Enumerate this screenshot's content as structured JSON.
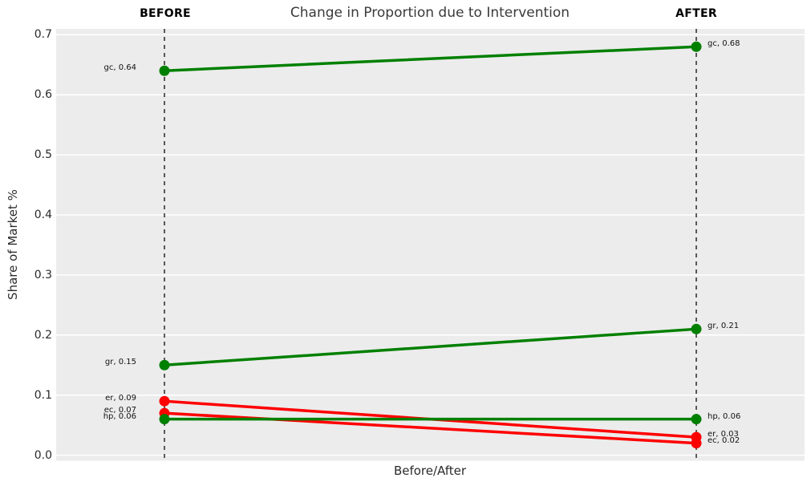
{
  "colors": {
    "figure_bg": "#ffffff",
    "plot_bg": "#ececec",
    "gridline": "#ffffff",
    "green": "#008000",
    "red": "#ff0000",
    "dashed_line": "#1a1a1a",
    "title_text": "#3a3a3a",
    "tick_text": "#2b2b2b",
    "annotation_text": "#111111"
  },
  "chart_data": {
    "type": "line",
    "variant": "slopegraph",
    "title": "Change in Proportion due to Intervention",
    "xlabel": "Before/After",
    "ylabel": "Share of Market %",
    "columns": [
      "BEFORE",
      "AFTER"
    ],
    "ylim": [
      0.0,
      0.7
    ],
    "legend": "none",
    "grid": "major-horizontal",
    "yticks": [
      {
        "value": 0.7,
        "label": "0.7"
      },
      {
        "value": 0.6,
        "label": "0.6"
      },
      {
        "value": 0.5,
        "label": "0.5"
      },
      {
        "value": 0.4,
        "label": "0.4"
      },
      {
        "value": 0.3,
        "label": "0.3"
      },
      {
        "value": 0.2,
        "label": "0.2"
      },
      {
        "value": 0.1,
        "label": "0.1"
      },
      {
        "value": 0.0,
        "label": "0.0"
      }
    ],
    "series": [
      {
        "id": "gc",
        "color_key": "green",
        "before": 0.64,
        "after": 0.68,
        "before_label": "gc, 0.64",
        "after_label": "gc, 0.68"
      },
      {
        "id": "gr",
        "color_key": "green",
        "before": 0.15,
        "after": 0.21,
        "before_label": "gr, 0.15",
        "after_label": "gr, 0.21"
      },
      {
        "id": "er",
        "color_key": "red",
        "before": 0.09,
        "after": 0.03,
        "before_label": "er, 0.09",
        "after_label": "er, 0.03"
      },
      {
        "id": "ec",
        "color_key": "red",
        "before": 0.07,
        "after": 0.02,
        "before_label": "ec, 0.07",
        "after_label": "ec, 0.02"
      },
      {
        "id": "hp",
        "color_key": "green",
        "before": 0.06,
        "after": 0.06,
        "before_label": "hp, 0.06",
        "after_label": "hp, 0.06"
      }
    ]
  }
}
